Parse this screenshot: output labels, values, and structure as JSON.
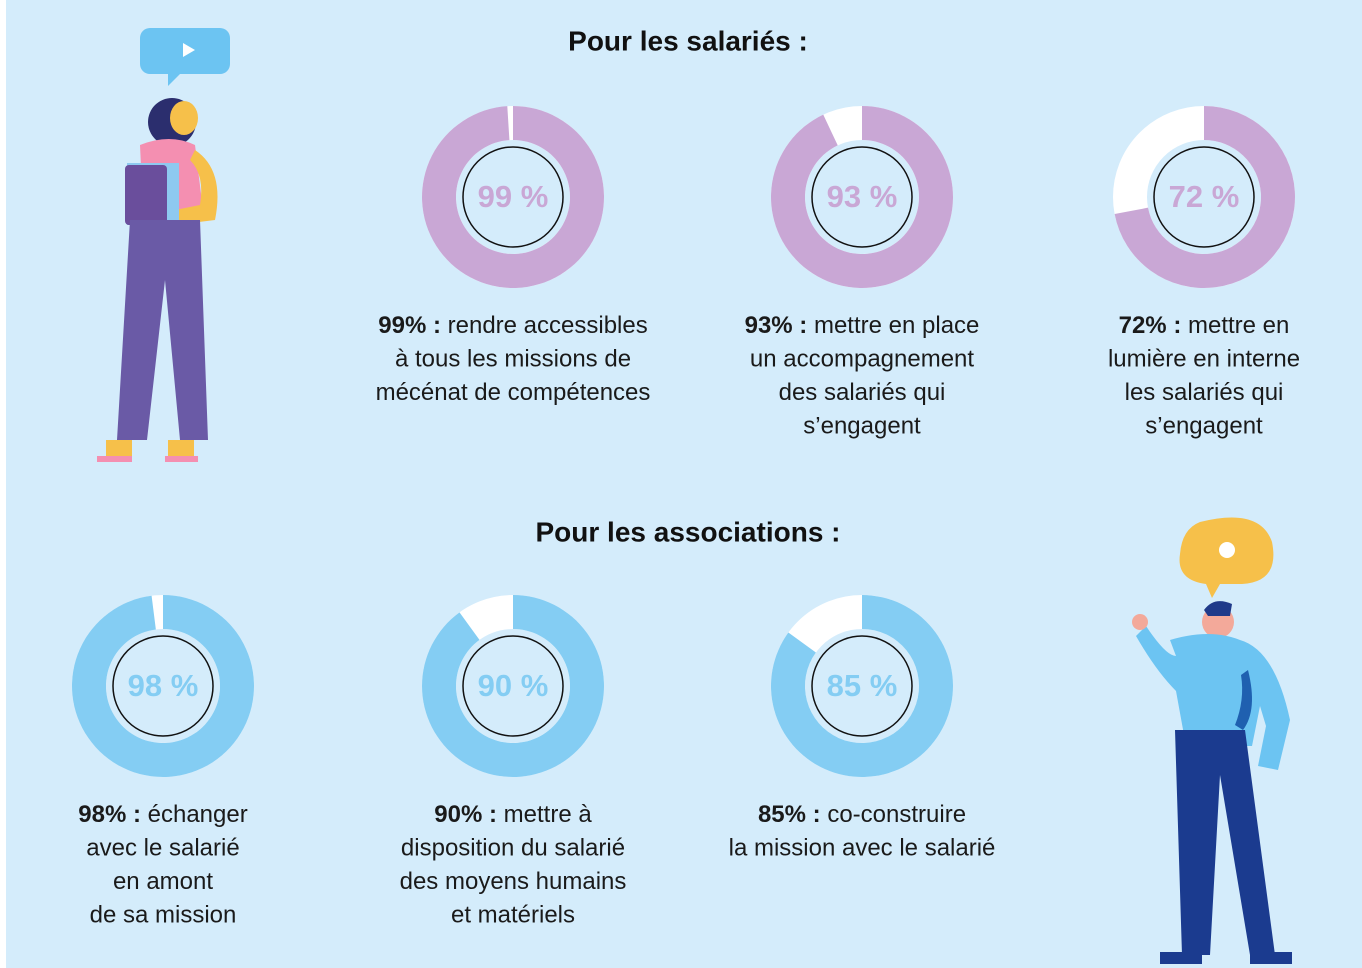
{
  "sections": [
    "Pour les salariés :",
    "Pour les associations :"
  ],
  "chart_data": [
    {
      "type": "donut",
      "values": [
        99
      ],
      "value_labels": [
        "99 %"
      ],
      "color": "#c9a7d5",
      "caption_lead": "99% :",
      "caption_lines": [
        "rendre accessibles",
        "à tous les missions de",
        "mécénat de compétences"
      ]
    },
    {
      "type": "donut",
      "values": [
        93
      ],
      "value_labels": [
        "93 %"
      ],
      "color": "#c9a7d5",
      "caption_lead": "93% :",
      "caption_lines": [
        "mettre en place",
        "un accompagnement",
        "des salariés qui",
        "s’engagent"
      ]
    },
    {
      "type": "donut",
      "values": [
        72
      ],
      "value_labels": [
        "72 %"
      ],
      "color": "#c9a7d5",
      "caption_lead": "72% :",
      "caption_lines": [
        "mettre en",
        "lumière en interne",
        "les salariés qui",
        "s’engagent"
      ]
    },
    {
      "type": "donut",
      "values": [
        98
      ],
      "value_labels": [
        "98 %"
      ],
      "color": "#84cdf3",
      "caption_lead": "98% :",
      "caption_lines": [
        "échanger",
        "avec le salarié",
        "en amont",
        "de sa mission"
      ]
    },
    {
      "type": "donut",
      "values": [
        90
      ],
      "value_labels": [
        "90 %"
      ],
      "color": "#84cdf3",
      "caption_lead": "90% :",
      "caption_lines": [
        "mettre à",
        "disposition du salarié",
        "des moyens humains",
        "et matériels"
      ]
    },
    {
      "type": "donut",
      "values": [
        85
      ],
      "value_labels": [
        "85 %"
      ],
      "color": "#84cdf3",
      "caption_lead": "85% :",
      "caption_lines": [
        "co-construire",
        "la mission avec le salarié"
      ]
    }
  ]
}
